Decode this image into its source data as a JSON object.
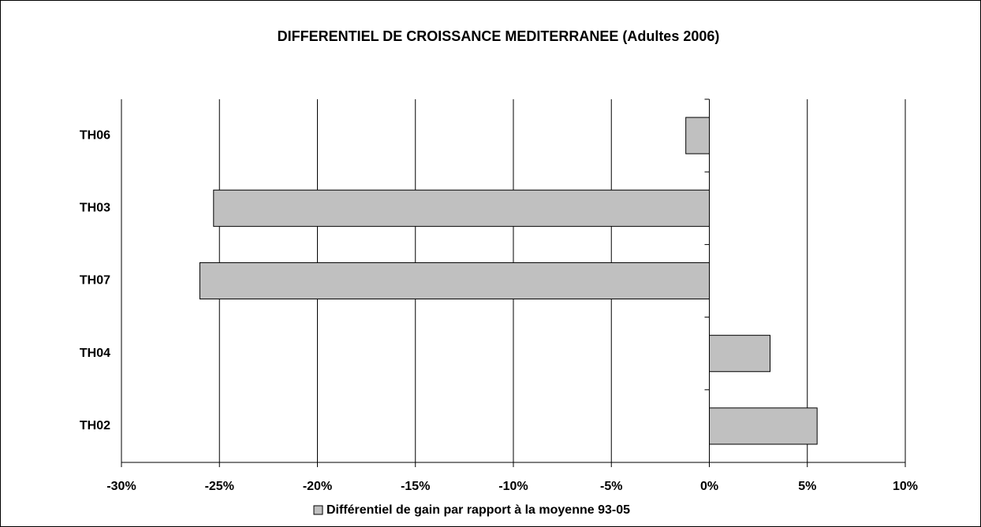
{
  "chart_data": {
    "type": "hbar",
    "title": "DIFFERENTIEL DE CROISSANCE MEDITERRANEE  (Adultes 2006)",
    "categories": [
      "TH06",
      "TH03",
      "TH07",
      "TH04",
      "TH02"
    ],
    "series": [
      {
        "name": "Différentiel de gain par rapport à la moyenne 93-05",
        "color": "#c0c0c0",
        "values": [
          -1.2,
          -25.3,
          -26.0,
          3.1,
          5.5
        ]
      }
    ],
    "xlim": [
      -30,
      10
    ],
    "xticks": [
      {
        "value": -30,
        "label": "-30%"
      },
      {
        "value": -25,
        "label": "-25%"
      },
      {
        "value": -20,
        "label": "-20%"
      },
      {
        "value": -15,
        "label": "-15%"
      },
      {
        "value": -10,
        "label": "-10%"
      },
      {
        "value": -5,
        "label": "-5%"
      },
      {
        "value": 0,
        "label": "0%"
      },
      {
        "value": 5,
        "label": "5%"
      },
      {
        "value": 10,
        "label": "10%"
      }
    ],
    "grid": true,
    "legend": "bottom"
  }
}
